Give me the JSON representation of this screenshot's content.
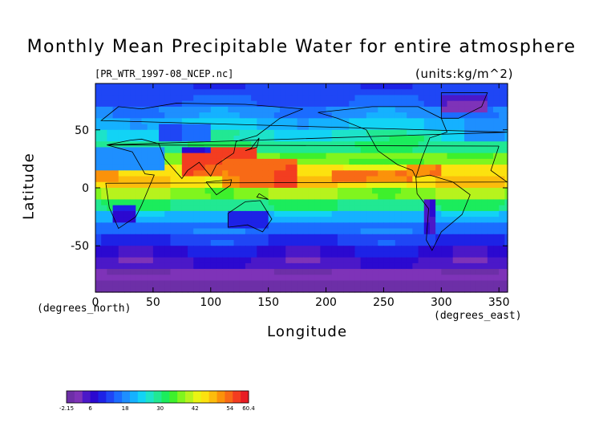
{
  "title": "Monthly Mean Precipitable Water for entire atmosphere",
  "file_label": "[PR_WTR_1997-08_NCEP.nc]",
  "units_label": "(units:kg/m^2)",
  "chart_data": {
    "type": "heatmap",
    "xlabel": "Longitude",
    "ylabel": "Latitude",
    "x_unit_label": "(degrees_east)",
    "y_unit_label": "(degrees_north)",
    "xlim": [
      0,
      357.5
    ],
    "ylim": [
      -90,
      90
    ],
    "xticks": [
      0,
      50,
      100,
      150,
      200,
      250,
      300,
      350
    ],
    "yticks": [
      -50,
      0,
      50
    ],
    "colorbar": {
      "min": -2.15,
      "max": 60.4,
      "tick_values": [
        -2.15,
        6,
        18,
        30,
        42,
        54,
        60.4
      ],
      "tick_labels": [
        "-2.15",
        "6",
        "18",
        "30",
        "42",
        "54",
        "60.4"
      ],
      "colors": [
        "#6d2fa7",
        "#7e33b8",
        "#4b18c8",
        "#2b09d0",
        "#1d22e6",
        "#1f46f5",
        "#1b6cff",
        "#1e8fff",
        "#15b1ff",
        "#12d3f5",
        "#1de3c9",
        "#21e893",
        "#1bec5c",
        "#3ef02c",
        "#80f51e",
        "#b7f31d",
        "#eaf414",
        "#fce20f",
        "#fcbc0c",
        "#fb920a",
        "#f86a16",
        "#f33d20",
        "#e81c23"
      ]
    },
    "field_description_cells": {
      "lat_bands": [
        {
          "lat_from": 90,
          "lat_to": 80,
          "value": 12
        },
        {
          "lat_from": 80,
          "lat_to": 70,
          "value": 14
        },
        {
          "lat_from": 70,
          "lat_to": 60,
          "value": 18
        },
        {
          "lat_from": 60,
          "lat_to": 50,
          "value": 22
        },
        {
          "lat_from": 50,
          "lat_to": 40,
          "value": 26
        },
        {
          "lat_from": 40,
          "lat_to": 30,
          "value": 30
        },
        {
          "lat_from": 30,
          "lat_to": 20,
          "value": 36
        },
        {
          "lat_from": 20,
          "lat_to": 10,
          "value": 44
        },
        {
          "lat_from": 10,
          "lat_to": 0,
          "value": 46
        },
        {
          "lat_from": 0,
          "lat_to": -10,
          "value": 38
        },
        {
          "lat_from": -10,
          "lat_to": -20,
          "value": 30
        },
        {
          "lat_from": -20,
          "lat_to": -30,
          "value": 22
        },
        {
          "lat_from": -30,
          "lat_to": -40,
          "value": 16
        },
        {
          "lat_from": -40,
          "lat_to": -50,
          "value": 12
        },
        {
          "lat_from": -50,
          "lat_to": -60,
          "value": 8
        },
        {
          "lat_from": -60,
          "lat_to": -70,
          "value": 5
        },
        {
          "lat_from": -70,
          "lat_to": -80,
          "value": 1
        },
        {
          "lat_from": -80,
          "lat_to": -90,
          "value": -1
        }
      ],
      "features": [
        {
          "name": "north-asia-monsoon-core",
          "lon": [
            75,
            140
          ],
          "lat": [
            10,
            35
          ],
          "value": 56
        },
        {
          "name": "west-pacific-warm-pool",
          "lon": [
            110,
            175
          ],
          "lat": [
            0,
            25
          ],
          "value": 54
        },
        {
          "name": "east-pacific-itcz",
          "lon": [
            205,
            275
          ],
          "lat": [
            3,
            15
          ],
          "value": 54
        },
        {
          "name": "caribbean",
          "lon": [
            270,
            300
          ],
          "lat": [
            8,
            22
          ],
          "value": 52
        },
        {
          "name": "west-africa",
          "lon": [
            0,
            20
          ],
          "lat": [
            5,
            15
          ],
          "value": 50
        },
        {
          "name": "sahara-arabia-dry",
          "lon": [
            0,
            60
          ],
          "lat": [
            17,
            33
          ],
          "value": 18
        },
        {
          "name": "himalaya-tibet-dry",
          "lon": [
            75,
            100
          ],
          "lat": [
            29,
            37
          ],
          "value": 8
        },
        {
          "name": "south-africa-dry",
          "lon": [
            15,
            35
          ],
          "lat": [
            -32,
            -15
          ],
          "value": 8
        },
        {
          "name": "australia-dry",
          "lon": [
            115,
            150
          ],
          "lat": [
            -35,
            -18
          ],
          "value": 10
        },
        {
          "name": "andes-dry",
          "lon": [
            285,
            295
          ],
          "lat": [
            -40,
            -10
          ],
          "value": 6
        },
        {
          "name": "north-atlantic-cool",
          "lon": [
            320,
            357.5
          ],
          "lat": [
            40,
            60
          ],
          "value": 20
        },
        {
          "name": "greenland-dry",
          "lon": [
            300,
            340
          ],
          "lat": [
            65,
            82
          ],
          "value": 4
        },
        {
          "name": "central-asia-dry",
          "lon": [
            55,
            100
          ],
          "lat": [
            38,
            55
          ],
          "value": 14
        },
        {
          "name": "north-america-moist",
          "lon": [
            255,
            290
          ],
          "lat": [
            30,
            45
          ],
          "value": 30
        }
      ]
    }
  }
}
